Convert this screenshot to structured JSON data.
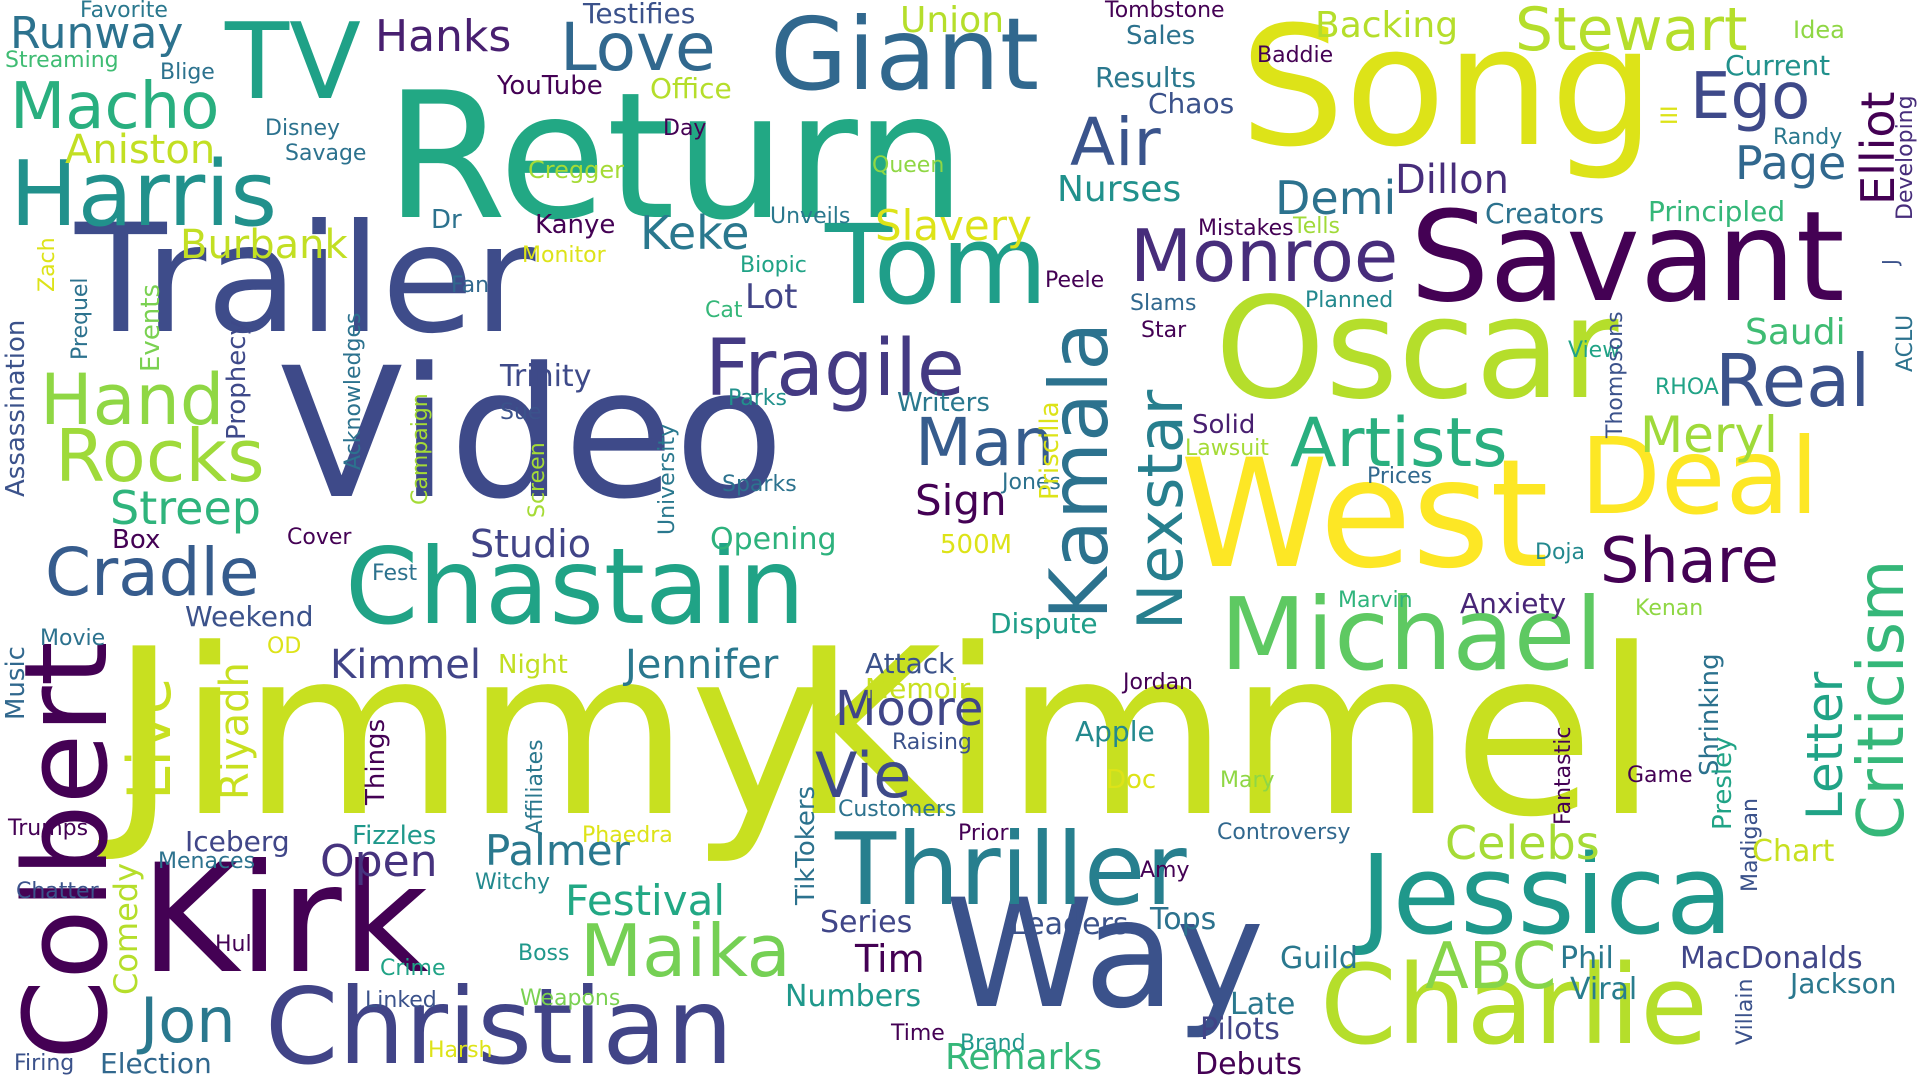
{
  "words": [
    {
      "text": "Jimmy",
      "color": "#c8e020"
    },
    {
      "text": "Kimmel",
      "color": "#c8e020"
    },
    {
      "text": "Video",
      "color": "#3e4a89"
    },
    {
      "text": "Return",
      "color": "#22a884"
    },
    {
      "text": "Trailer",
      "color": "#3e4c8a"
    },
    {
      "text": "Song",
      "color": "#dde318"
    },
    {
      "text": "West",
      "color": "#fde725"
    },
    {
      "text": "Oscar",
      "color": "#b5de2b"
    },
    {
      "text": "Savant",
      "color": "#440154"
    },
    {
      "text": "Kirk",
      "color": "#440154"
    },
    {
      "text": "Way",
      "color": "#3b528b"
    },
    {
      "text": "Charlie",
      "color": "#b5de2b"
    },
    {
      "text": "Christian",
      "color": "#414487"
    },
    {
      "text": "Jessica",
      "color": "#1f988b"
    },
    {
      "text": "Chastain",
      "color": "#20a386"
    },
    {
      "text": "Tom",
      "color": "#1f9e89"
    },
    {
      "text": "Thriller",
      "color": "#277f8e"
    },
    {
      "text": "Michael",
      "color": "#5ec962"
    },
    {
      "text": "Colbert",
      "color": "#440154"
    },
    {
      "text": "Giant",
      "color": "#31688e"
    },
    {
      "text": "Kamala",
      "color": "#2c728e"
    },
    {
      "text": "Harris",
      "color": "#21918c"
    },
    {
      "text": "TV",
      "color": "#1fa187"
    },
    {
      "text": "Deal",
      "color": "#fde725"
    },
    {
      "text": "Monroe",
      "color": "#472d7b"
    },
    {
      "text": "Fragile",
      "color": "#443a83"
    },
    {
      "text": "Nexstar",
      "color": "#277f8e"
    },
    {
      "text": "Artists",
      "color": "#29af7f"
    },
    {
      "text": "Real",
      "color": "#3b528b"
    },
    {
      "text": "Criticism",
      "color": "#35b779"
    },
    {
      "text": "Maika",
      "color": "#75d054"
    },
    {
      "text": "Jon",
      "color": "#2a788e"
    },
    {
      "text": "Cradle",
      "color": "#365c8d"
    },
    {
      "text": "Rocks",
      "color": "#9fda3a"
    },
    {
      "text": "Hand",
      "color": "#8fd744"
    },
    {
      "text": "Love",
      "color": "#31688e"
    },
    {
      "text": "Macho",
      "color": "#29af7f"
    },
    {
      "text": "Hanks",
      "color": "#481f70"
    },
    {
      "text": "Runway",
      "color": "#2c728e"
    },
    {
      "text": "Stewart",
      "color": "#b5de2b"
    },
    {
      "text": "Ego",
      "color": "#3e4989"
    },
    {
      "text": "Elliot",
      "color": "#440154"
    },
    {
      "text": "Page",
      "color": "#31688e"
    },
    {
      "text": "Share",
      "color": "#440154"
    },
    {
      "text": "Letter",
      "color": "#20a386"
    },
    {
      "text": "ABC",
      "color": "#86d549"
    },
    {
      "text": "Celebs",
      "color": "#a5db36"
    },
    {
      "text": "Meryl",
      "color": "#9fda3a"
    },
    {
      "text": "Air",
      "color": "#3a548c"
    },
    {
      "text": "Man",
      "color": "#365c8d"
    },
    {
      "text": "Moore",
      "color": "#404688"
    },
    {
      "text": "Vie",
      "color": "#3e4a89"
    },
    {
      "text": "Live",
      "color": "#c8e020"
    },
    {
      "text": "Streep",
      "color": "#2fb47c"
    },
    {
      "text": "Keke",
      "color": "#2a788e"
    },
    {
      "text": "Slavery",
      "color": "#dde318"
    },
    {
      "text": "Burbank",
      "color": "#c2df23"
    },
    {
      "text": "Aniston",
      "color": "#c2df23"
    },
    {
      "text": "Demi",
      "color": "#2c728e"
    },
    {
      "text": "Dillon",
      "color": "#472d7b"
    },
    {
      "text": "Jennifer",
      "color": "#2a788e"
    },
    {
      "text": "Kimmel",
      "color": "#414487"
    },
    {
      "text": "Open",
      "color": "#46337e"
    },
    {
      "text": "Palmer",
      "color": "#2a788e"
    },
    {
      "text": "Festival",
      "color": "#22a884"
    },
    {
      "text": "Tim",
      "color": "#440154"
    },
    {
      "text": "Studio",
      "color": "#414487"
    },
    {
      "text": "Sign",
      "color": "#440154"
    },
    {
      "text": "Lot",
      "color": "#414487"
    },
    {
      "text": "Riyadh",
      "color": "#c8e020"
    },
    {
      "text": "Comedy",
      "color": "#b5de2b"
    },
    {
      "text": "Iceberg",
      "color": "#404688"
    },
    {
      "text": "Election",
      "color": "#31688e"
    },
    {
      "text": "Remarks",
      "color": "#35b779"
    },
    {
      "text": "Numbers",
      "color": "#1f988b"
    },
    {
      "text": "Series",
      "color": "#404688"
    },
    {
      "text": "Leaders",
      "color": "#3b528b"
    },
    {
      "text": "Tops",
      "color": "#2c728e"
    },
    {
      "text": "Guild",
      "color": "#2a788e"
    },
    {
      "text": "Phil",
      "color": "#2a788e"
    },
    {
      "text": "MacDonalds",
      "color": "#404688"
    },
    {
      "text": "Jackson",
      "color": "#2a788e"
    },
    {
      "text": "Viral",
      "color": "#287d8e"
    },
    {
      "text": "Late",
      "color": "#2a788e"
    },
    {
      "text": "Pilots",
      "color": "#414487"
    },
    {
      "text": "Debuts",
      "color": "#440154"
    },
    {
      "text": "Anxiety",
      "color": "#482576"
    },
    {
      "text": "Dispute",
      "color": "#1f9e89"
    },
    {
      "text": "Attack",
      "color": "#3b528b"
    },
    {
      "text": "Memoir",
      "color": "#c8e020"
    },
    {
      "text": "Apple",
      "color": "#23898e"
    },
    {
      "text": "Opening",
      "color": "#2db27d"
    },
    {
      "text": "Trinity",
      "color": "#3e4a89"
    },
    {
      "text": "Writers",
      "color": "#2a788e"
    },
    {
      "text": "Saudi",
      "color": "#3fbc73"
    },
    {
      "text": "Solid",
      "color": "#481f70"
    },
    {
      "text": "Nurses",
      "color": "#21918c"
    },
    {
      "text": "Backing",
      "color": "#b5de2b"
    },
    {
      "text": "Union",
      "color": "#b5de2b"
    },
    {
      "text": "Office",
      "color": "#b5de2b"
    },
    {
      "text": "Testifies",
      "color": "#3b528b"
    },
    {
      "text": "Results",
      "color": "#2a788e"
    },
    {
      "text": "Chaos",
      "color": "#3b528b"
    },
    {
      "text": "Sales",
      "color": "#2c728e"
    },
    {
      "text": "Tombstone",
      "color": "#440154"
    },
    {
      "text": "Baddie",
      "color": "#440154"
    },
    {
      "text": "Current",
      "color": "#21918c"
    },
    {
      "text": "Idea",
      "color": "#8fd744"
    },
    {
      "text": "Randy",
      "color": "#2a788e"
    },
    {
      "text": "Creators",
      "color": "#2c728e"
    },
    {
      "text": "Principled",
      "color": "#35b779"
    },
    {
      "text": "Developing",
      "color": "#472d7b"
    },
    {
      "text": "YouTube",
      "color": "#440154"
    },
    {
      "text": "Favorite",
      "color": "#2a788e"
    },
    {
      "text": "Streaming",
      "color": "#3fbc73"
    },
    {
      "text": "Blige",
      "color": "#2c728e"
    },
    {
      "text": "Disney",
      "color": "#2c728e"
    },
    {
      "text": "Savage",
      "color": "#2c728e"
    },
    {
      "text": "Day",
      "color": "#440154"
    },
    {
      "text": "Queen",
      "color": "#8fd744"
    },
    {
      "text": "Cregger",
      "color": "#a5db36"
    },
    {
      "text": "Unveils",
      "color": "#2a788e"
    },
    {
      "text": "Biopic",
      "color": "#20a386"
    },
    {
      "text": "Kanye",
      "color": "#440154"
    },
    {
      "text": "Dr",
      "color": "#2c728e"
    },
    {
      "text": "Monitor",
      "color": "#dde318"
    },
    {
      "text": "Cat",
      "color": "#35b779"
    },
    {
      "text": "Fan",
      "color": "#31688e"
    },
    {
      "text": "Peele",
      "color": "#440154"
    },
    {
      "text": "Mistakes",
      "color": "#440154"
    },
    {
      "text": "Tells",
      "color": "#a0da39"
    },
    {
      "text": "Slams",
      "color": "#31688e"
    },
    {
      "text": "Planned",
      "color": "#23898e"
    },
    {
      "text": "Star",
      "color": "#440154"
    },
    {
      "text": "View",
      "color": "#20a386"
    },
    {
      "text": "RHOA",
      "color": "#20a386"
    },
    {
      "text": "ACLU",
      "color": "#2c728e"
    },
    {
      "text": "Lawsuit",
      "color": "#a5db36"
    },
    {
      "text": "Prices",
      "color": "#31688e"
    },
    {
      "text": "Thompsons",
      "color": "#3b528b"
    },
    {
      "text": "Doja",
      "color": "#23898e"
    },
    {
      "text": "Marvin",
      "color": "#2fb47c"
    },
    {
      "text": "Kenan",
      "color": "#8fd744"
    },
    {
      "text": "Shrinking",
      "color": "#2c728e"
    },
    {
      "text": "Presley",
      "color": "#20a386"
    },
    {
      "text": "Jordan",
      "color": "#440154"
    },
    {
      "text": "Fantastic",
      "color": "#440154"
    },
    {
      "text": "Game",
      "color": "#440154"
    },
    {
      "text": "Madigan",
      "color": "#3b528b"
    },
    {
      "text": "Chart",
      "color": "#c8e020"
    },
    {
      "text": "Villain",
      "color": "#3b528b"
    },
    {
      "text": "Controversy",
      "color": "#31688e"
    },
    {
      "text": "Amy",
      "color": "#440154"
    },
    {
      "text": "Prior",
      "color": "#440154"
    },
    {
      "text": "Customers",
      "color": "#2c728e"
    },
    {
      "text": "Raising",
      "color": "#3b528b"
    },
    {
      "text": "Mary",
      "color": "#8fd744"
    },
    {
      "text": "Doc",
      "color": "#dde318"
    },
    {
      "text": "Jones",
      "color": "#2c728e"
    },
    {
      "text": "Sparks",
      "color": "#2c728e"
    },
    {
      "text": "Parks",
      "color": "#21918c"
    },
    {
      "text": "500M",
      "color": "#dde318"
    },
    {
      "text": "Time",
      "color": "#440154"
    },
    {
      "text": "Brand",
      "color": "#1f988b"
    },
    {
      "text": "Fizzles",
      "color": "#1f988b"
    },
    {
      "text": "Witchy",
      "color": "#23898e"
    },
    {
      "text": "Phaedra",
      "color": "#dde318"
    },
    {
      "text": "TikTokers",
      "color": "#2c728e"
    },
    {
      "text": "Affiliates",
      "color": "#2a788e"
    },
    {
      "text": "Things",
      "color": "#440154"
    },
    {
      "text": "Night",
      "color": "#c2df23"
    },
    {
      "text": "Boss",
      "color": "#1f988b"
    },
    {
      "text": "Weapons",
      "color": "#7ad151"
    },
    {
      "text": "Crime",
      "color": "#20a386"
    },
    {
      "text": "Linked",
      "color": "#3b528b"
    },
    {
      "text": "Harsh",
      "color": "#dde318"
    },
    {
      "text": "Hulu",
      "color": "#440154"
    },
    {
      "text": "Menaces",
      "color": "#2c728e"
    },
    {
      "text": "Chatter",
      "color": "#3b528b"
    },
    {
      "text": "Trumps",
      "color": "#440154"
    },
    {
      "text": "Firing",
      "color": "#3b528b"
    },
    {
      "text": "Music",
      "color": "#31688e"
    },
    {
      "text": "Movie",
      "color": "#2c728e"
    },
    {
      "text": "OD",
      "color": "#dde318"
    },
    {
      "text": "Weekend",
      "color": "#3b528b"
    },
    {
      "text": "Box",
      "color": "#440154"
    },
    {
      "text": "Cover",
      "color": "#440154"
    },
    {
      "text": "Fest",
      "color": "#2c728e"
    },
    {
      "text": "Events",
      "color": "#7ad151"
    },
    {
      "text": "Prophecy",
      "color": "#3e4989"
    },
    {
      "text": "Acknowledges",
      "color": "#2c728e"
    },
    {
      "text": "Campaign",
      "color": "#a5db36"
    },
    {
      "text": "Sue",
      "color": "#3b528b"
    },
    {
      "text": "Screen",
      "color": "#a5db36"
    },
    {
      "text": "University",
      "color": "#2a788e"
    },
    {
      "text": "Assassination",
      "color": "#3b528b"
    },
    {
      "text": "Prequel",
      "color": "#2c728e"
    },
    {
      "text": "Zach",
      "color": "#dde318"
    },
    {
      "text": "Priscilla",
      "color": "#dde318"
    },
    {
      "text": "III",
      "color": "#dde318"
    },
    {
      "text": "J",
      "color": "#3b528b"
    }
  ]
}
